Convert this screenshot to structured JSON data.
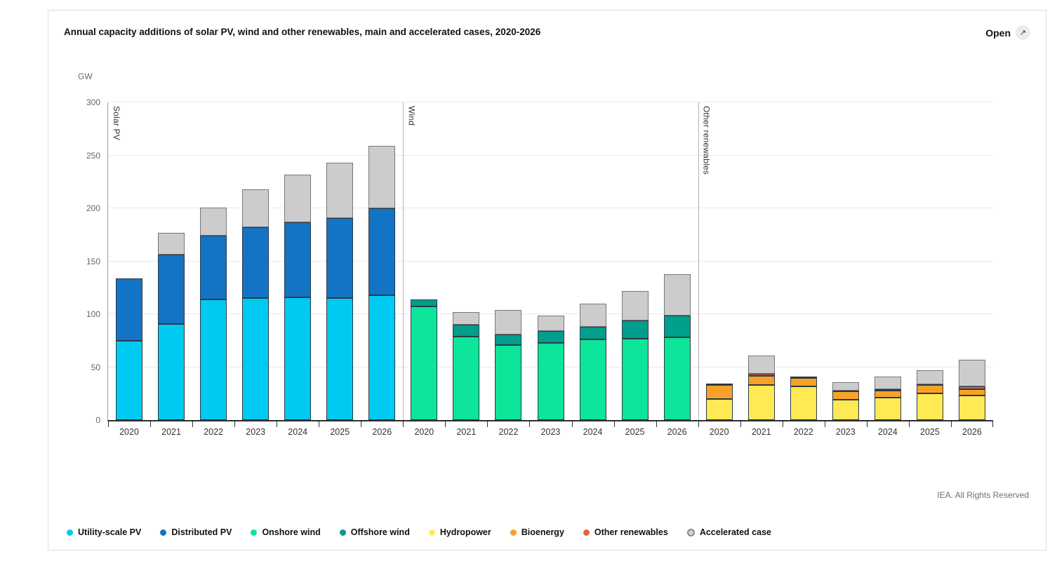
{
  "header": {
    "title": "Annual capacity additions of solar PV, wind and other renewables, main and accelerated cases, 2020-2026",
    "open_label": "Open",
    "open_icon": "↗"
  },
  "axis": {
    "unit_label": "GW"
  },
  "footer": {
    "copyright": "IEA. All Rights Reserved"
  },
  "colors": {
    "utility_pv": "#00c9f2",
    "distributed_pv": "#1374c5",
    "onshore_wind": "#0ce59a",
    "offshore_wind": "#009e8c",
    "hydropower": "#ffe955",
    "bioenergy": "#f7a227",
    "other_renewables": "#e8603c",
    "accelerated": "#cccccc"
  },
  "legend": {
    "items": [
      {
        "label": "Utility-scale PV",
        "color": "#00c9f2",
        "accel": false
      },
      {
        "label": "Distributed PV",
        "color": "#1374c5",
        "accel": false
      },
      {
        "label": "Onshore wind",
        "color": "#0ce59a",
        "accel": false
      },
      {
        "label": "Offshore wind",
        "color": "#009e8c",
        "accel": false
      },
      {
        "label": "Hydropower",
        "color": "#ffe955",
        "accel": false
      },
      {
        "label": "Bioenergy",
        "color": "#f7a227",
        "accel": false
      },
      {
        "label": "Other renewables",
        "color": "#e8603c",
        "accel": false
      },
      {
        "label": "Accelerated case",
        "color": "#cccccc",
        "accel": true
      }
    ]
  },
  "chart_data": {
    "type": "bar",
    "stacked": true,
    "title": "Annual capacity additions of solar PV, wind and other renewables, main and accelerated cases, 2020-2026",
    "unit": "GW",
    "ylabel": "GW",
    "ylim": [
      0,
      300
    ],
    "yticks": [
      0,
      50,
      100,
      150,
      200,
      250,
      300
    ],
    "grid": "horizontal",
    "legend_position": "bottom",
    "categories": [
      "2020",
      "2021",
      "2022",
      "2023",
      "2024",
      "2025",
      "2026"
    ],
    "groups": [
      {
        "label": "Solar PV",
        "series": [
          {
            "name": "Utility-scale PV",
            "color": "#00c9f2",
            "values": [
              75,
              91,
              114,
              115,
              116,
              115,
              118
            ]
          },
          {
            "name": "Distributed PV",
            "color": "#1374c5",
            "values": [
              59,
              65,
              60,
              67,
              71,
              76,
              82
            ]
          },
          {
            "name": "Accelerated case",
            "color": "#cccccc",
            "values": [
              0,
              21,
              27,
              36,
              45,
              52,
              59
            ]
          }
        ]
      },
      {
        "label": "Wind",
        "series": [
          {
            "name": "Onshore wind",
            "color": "#0ce59a",
            "values": [
              107,
              79,
              71,
              73,
              76,
              77,
              78
            ]
          },
          {
            "name": "Offshore wind",
            "color": "#009e8c",
            "values": [
              7,
              11,
              10,
              11,
              12,
              17,
              21
            ]
          },
          {
            "name": "Accelerated case",
            "color": "#cccccc",
            "values": [
              0,
              12,
              23,
              15,
              22,
              28,
              39
            ]
          }
        ]
      },
      {
        "label": "Other renewables",
        "series": [
          {
            "name": "Hydropower",
            "color": "#ffe955",
            "values": [
              20,
              33,
              32,
              19,
              21,
              25,
              23
            ]
          },
          {
            "name": "Bioenergy",
            "color": "#f7a227",
            "values": [
              13,
              9,
              8,
              8,
              7,
              8,
              6
            ]
          },
          {
            "name": "Other renewables",
            "color": "#e8603c",
            "values": [
              1,
              2,
              1,
              1,
              1,
              1,
              3
            ]
          },
          {
            "name": "Accelerated case",
            "color": "#cccccc",
            "values": [
              0,
              17,
              0,
              8,
              12,
              13,
              25
            ]
          }
        ]
      }
    ]
  }
}
